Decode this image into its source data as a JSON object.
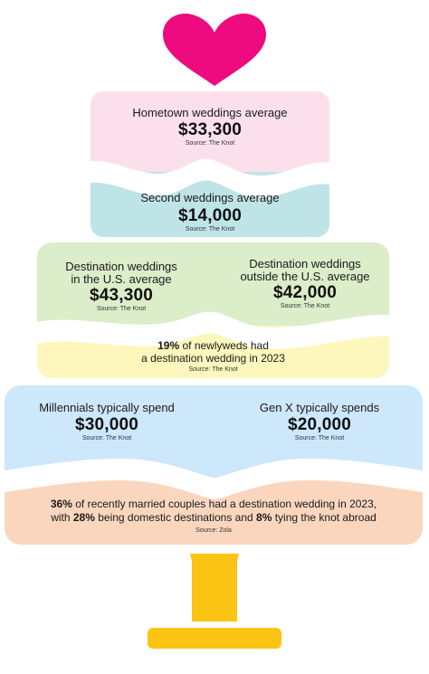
{
  "colors": {
    "heart": "#ed0b7f",
    "tier1_top": "#fbe0ec",
    "tier1_bottom": "#bfe4e7",
    "tier2_top": "#dcedc9",
    "tier2_bottom": "#fdf6bd",
    "tier3_top": "#cde7fb",
    "tier3_bottom": "#fad6bf",
    "stand": "#fbc414"
  },
  "tier1": {
    "top": {
      "label": "Hometown weddings average",
      "value": "$33,300",
      "source": "Source: The Knot"
    },
    "bottom": {
      "label": "Second weddings average",
      "value": "$14,000",
      "source": "Source: The Knot"
    }
  },
  "tier2": {
    "left": {
      "label_line1": "Destination weddings",
      "label_line2": "in the U.S. average",
      "value": "$43,300",
      "source": "Source: The Knot"
    },
    "right": {
      "label_line1": "Destination weddings",
      "label_line2": "outside the U.S. average",
      "value": "$42,000",
      "source": "Source: The Knot"
    },
    "bottom": {
      "pct": "19%",
      "text_line1": " of newlyweds had",
      "text_line2": "a destination wedding in 2023",
      "source": "Source: The Knot"
    }
  },
  "tier3": {
    "left": {
      "label": "Millennials typically spend",
      "value": "$30,000",
      "source": "Source: The Knot"
    },
    "right": {
      "label": "Gen X typically spends",
      "value": "$20,000",
      "source": "Source: The Knot"
    },
    "bottom": {
      "pct1": "36%",
      "text1": " of recently married couples had a destination wedding in 2023,",
      "text2a": "with ",
      "pct2": "28%",
      "text2b": " being domestic destinations and ",
      "pct3": "8%",
      "text2c": " tying the knot abroad",
      "source": "Source: Zola"
    }
  }
}
